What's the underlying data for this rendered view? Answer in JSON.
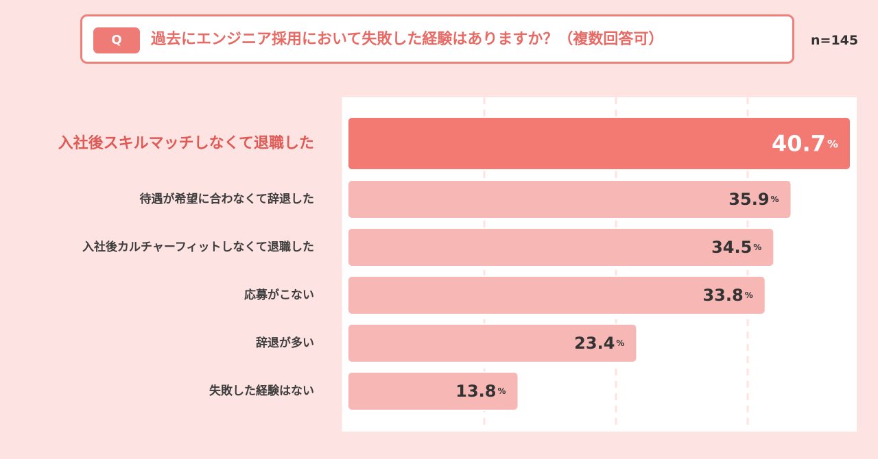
{
  "question": {
    "badge": "Q",
    "text": "過去にエンジニア採用において失敗した経験はありますか？（複数回答可）"
  },
  "sample_size": "n=145",
  "chart_data": {
    "type": "bar",
    "orientation": "horizontal",
    "categories": [
      "入社後スキルマッチしなくて退職した",
      "待遇が希望に合わなくて辞退した",
      "入社後カルチャーフィットしなくて退職した",
      "応募がこない",
      "辞退が多い",
      "失敗した経験はない"
    ],
    "values": [
      40.7,
      35.9,
      34.5,
      33.8,
      23.4,
      13.8
    ],
    "value_labels": [
      "40.7",
      "35.9",
      "34.5",
      "33.8",
      "23.4",
      "13.8"
    ],
    "unit": "%",
    "highlight_index": 0,
    "xlim": [
      0,
      40.7
    ],
    "grid": "dashed vertical",
    "colors": {
      "highlight_bar": "#f27a73",
      "bar": "#f7b8b5",
      "highlight_label": "#e05a55"
    }
  }
}
